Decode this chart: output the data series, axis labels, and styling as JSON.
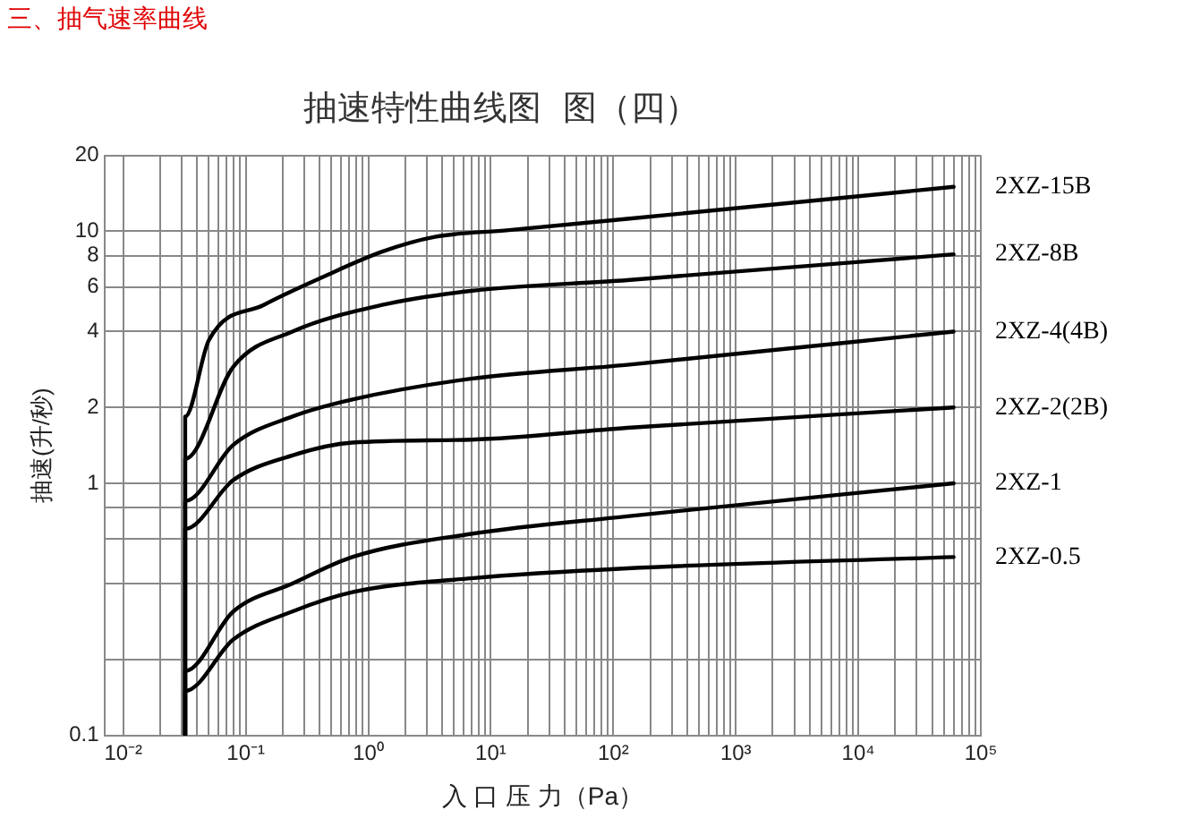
{
  "chart_data": {
    "type": "line",
    "title": "三、抽气速率曲线",
    "subtitle": "抽速特性曲线图  图（四）",
    "xlabel": "入 口 压 力（Pa）",
    "ylabel": "抽速(升/秒)",
    "log": "xy",
    "grid": true,
    "legend": false,
    "marker": "none",
    "line_style": "solid",
    "xlim": [
      0.007,
      100000
    ],
    "ylim": [
      0.1,
      20
    ],
    "xticks": [
      {
        "value": 0.01,
        "label": "10⁻²"
      },
      {
        "value": 0.02,
        "label": null
      },
      {
        "value": 0.03,
        "label": null
      },
      {
        "value": 0.04,
        "label": null
      },
      {
        "value": 0.05,
        "label": null
      },
      {
        "value": 0.06,
        "label": null
      },
      {
        "value": 0.07,
        "label": null
      },
      {
        "value": 0.08,
        "label": null
      },
      {
        "value": 0.09,
        "label": null
      },
      {
        "value": 0.1,
        "label": "10⁻¹"
      },
      {
        "value": 0.2,
        "label": null
      },
      {
        "value": 0.3,
        "label": null
      },
      {
        "value": 0.4,
        "label": null
      },
      {
        "value": 0.5,
        "label": null
      },
      {
        "value": 0.6,
        "label": null
      },
      {
        "value": 0.7,
        "label": null
      },
      {
        "value": 0.8,
        "label": null
      },
      {
        "value": 0.9,
        "label": null
      },
      {
        "value": 1,
        "label": "10⁰"
      },
      {
        "value": 2,
        "label": null
      },
      {
        "value": 3,
        "label": null
      },
      {
        "value": 4,
        "label": null
      },
      {
        "value": 5,
        "label": null
      },
      {
        "value": 6,
        "label": null
      },
      {
        "value": 7,
        "label": null
      },
      {
        "value": 8,
        "label": null
      },
      {
        "value": 9,
        "label": null
      },
      {
        "value": 10,
        "label": "10¹"
      },
      {
        "value": 20,
        "label": null
      },
      {
        "value": 30,
        "label": null
      },
      {
        "value": 40,
        "label": null
      },
      {
        "value": 50,
        "label": null
      },
      {
        "value": 60,
        "label": null
      },
      {
        "value": 70,
        "label": null
      },
      {
        "value": 80,
        "label": null
      },
      {
        "value": 90,
        "label": null
      },
      {
        "value": 100,
        "label": "10²"
      },
      {
        "value": 200,
        "label": null
      },
      {
        "value": 300,
        "label": null
      },
      {
        "value": 400,
        "label": null
      },
      {
        "value": 500,
        "label": null
      },
      {
        "value": 600,
        "label": null
      },
      {
        "value": 700,
        "label": null
      },
      {
        "value": 800,
        "label": null
      },
      {
        "value": 900,
        "label": null
      },
      {
        "value": 1000,
        "label": "10³"
      },
      {
        "value": 2000,
        "label": null
      },
      {
        "value": 3000,
        "label": null
      },
      {
        "value": 4000,
        "label": null
      },
      {
        "value": 5000,
        "label": null
      },
      {
        "value": 6000,
        "label": null
      },
      {
        "value": 7000,
        "label": null
      },
      {
        "value": 8000,
        "label": null
      },
      {
        "value": 9000,
        "label": null
      },
      {
        "value": 10000,
        "label": "10⁴"
      },
      {
        "value": 20000,
        "label": null
      },
      {
        "value": 30000,
        "label": null
      },
      {
        "value": 40000,
        "label": null
      },
      {
        "value": 50000,
        "label": null
      },
      {
        "value": 60000,
        "label": null
      },
      {
        "value": 70000,
        "label": null
      },
      {
        "value": 80000,
        "label": null
      },
      {
        "value": 90000,
        "label": null
      },
      {
        "value": 100000,
        "label": "10⁵"
      }
    ],
    "yticks": [
      0.1,
      {
        "value": 0.2,
        "label": null
      },
      {
        "value": 0.4,
        "label": null
      },
      {
        "value": 0.6,
        "label": null
      },
      {
        "value": 0.8,
        "label": null
      },
      1,
      2,
      4,
      6,
      8,
      10,
      20
    ],
    "series": [
      {
        "name": "2XZ-15B",
        "color": "#000000",
        "x": [
          0.032,
          0.032,
          0.05,
          0.14,
          0.43,
          1.3,
          3.5,
          14,
          130,
          60000
        ],
        "values": [
          0.1,
          1.84,
          3.7,
          5.1,
          6.6,
          8.3,
          9.5,
          10.1,
          11.2,
          15
        ]
      },
      {
        "name": "2XZ-8B",
        "color": "#000000",
        "x": [
          0.032,
          0.032,
          0.079,
          0.24,
          1.3,
          6.9,
          130,
          60000
        ],
        "values": [
          0.1,
          1.25,
          2.9,
          4.0,
          5.1,
          5.8,
          6.4,
          8.1
        ]
      },
      {
        "name": "2XZ-4(4B)",
        "color": "#000000",
        "x": [
          0.032,
          0.032,
          0.079,
          0.24,
          0.74,
          6.9,
          130,
          60000
        ],
        "values": [
          0.1,
          0.85,
          1.42,
          1.84,
          2.15,
          2.6,
          2.95,
          4.0
        ]
      },
      {
        "name": "2XZ-2(2B)",
        "color": "#000000",
        "x": [
          0.032,
          0.032,
          0.079,
          0.24,
          0.74,
          6.9,
          130,
          60000
        ],
        "values": [
          0.1,
          0.66,
          1.03,
          1.29,
          1.45,
          1.49,
          1.66,
          2.0
        ]
      },
      {
        "name": "2XZ-1",
        "color": "#000000",
        "x": [
          0.032,
          0.032,
          0.079,
          0.24,
          0.74,
          6.9,
          130,
          60000
        ],
        "values": [
          0.1,
          0.18,
          0.31,
          0.4,
          0.51,
          0.63,
          0.74,
          1.0
        ]
      },
      {
        "name": "2XZ-0.5",
        "color": "#000000",
        "x": [
          0.032,
          0.032,
          0.079,
          0.24,
          0.74,
          6.9,
          130,
          60000
        ],
        "values": [
          0.1,
          0.15,
          0.24,
          0.31,
          0.37,
          0.42,
          0.46,
          0.51
        ]
      }
    ]
  }
}
